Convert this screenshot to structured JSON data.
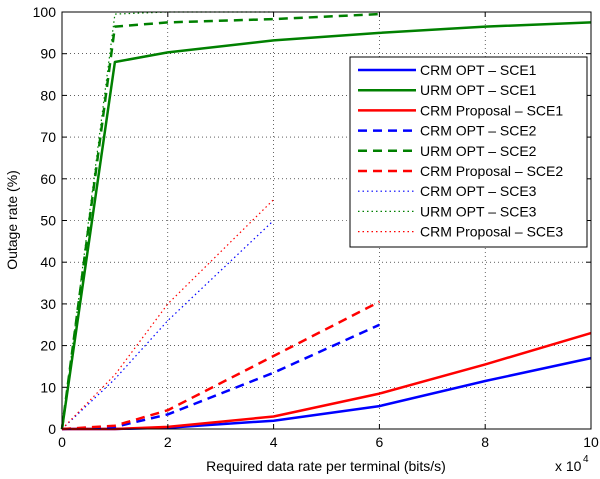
{
  "chart_data": {
    "type": "line",
    "title": "",
    "xlabel": "Required data rate per terminal (bits/s)",
    "ylabel": "Outage rate (%)",
    "x_multiplier": "x 10",
    "x_multiplier_exp": "4",
    "xlim": [
      0,
      10
    ],
    "ylim": [
      0,
      100
    ],
    "xticks": [
      0,
      2,
      4,
      6,
      8,
      10
    ],
    "yticks": [
      0,
      10,
      20,
      30,
      40,
      50,
      60,
      70,
      80,
      90,
      100
    ],
    "grid": true,
    "legend_position": "top-right",
    "series": [
      {
        "name": "CRM OPT – SCE1",
        "color": "#0000ff",
        "style": "solid",
        "x": [
          0,
          1,
          2,
          4,
          6,
          8,
          10
        ],
        "y": [
          0,
          0,
          0.3,
          2,
          5.5,
          11.5,
          17
        ]
      },
      {
        "name": "URM OPT – SCE1",
        "color": "#008000",
        "style": "solid",
        "x": [
          0,
          1,
          2,
          4,
          6,
          8,
          10
        ],
        "y": [
          0,
          88,
          90.3,
          93.2,
          95,
          96.5,
          97.5
        ]
      },
      {
        "name": "CRM Proposal – SCE1",
        "color": "#ff0000",
        "style": "solid",
        "x": [
          0,
          1,
          2,
          4,
          6,
          8,
          10
        ],
        "y": [
          0,
          0,
          0.5,
          3,
          8.5,
          15.5,
          23
        ]
      },
      {
        "name": "CRM OPT – SCE2",
        "color": "#0000ff",
        "style": "dashed",
        "x": [
          0,
          1,
          2,
          4,
          6
        ],
        "y": [
          0,
          0.5,
          3.5,
          13.5,
          25
        ]
      },
      {
        "name": "URM OPT – SCE2",
        "color": "#008000",
        "style": "dashed",
        "x": [
          0,
          1,
          2,
          4,
          6
        ],
        "y": [
          0,
          96.5,
          97.5,
          98.3,
          99.5
        ]
      },
      {
        "name": "CRM Proposal – SCE2",
        "color": "#ff0000",
        "style": "dashed",
        "x": [
          0,
          1,
          2,
          4,
          6
        ],
        "y": [
          0,
          0.8,
          4.5,
          17.5,
          30.5
        ]
      },
      {
        "name": "CRM OPT – SCE3",
        "color": "#0000ff",
        "style": "dotted",
        "x": [
          0,
          1,
          2,
          4
        ],
        "y": [
          0,
          12,
          26,
          50
        ]
      },
      {
        "name": "URM OPT – SCE3",
        "color": "#008000",
        "style": "dotted",
        "x": [
          0,
          1,
          2,
          4
        ],
        "y": [
          0,
          99.5,
          100,
          100
        ]
      },
      {
        "name": "CRM Proposal – SCE3",
        "color": "#ff0000",
        "style": "dotted",
        "x": [
          0,
          1,
          2,
          4
        ],
        "y": [
          0,
          13,
          30,
          55
        ]
      }
    ]
  }
}
